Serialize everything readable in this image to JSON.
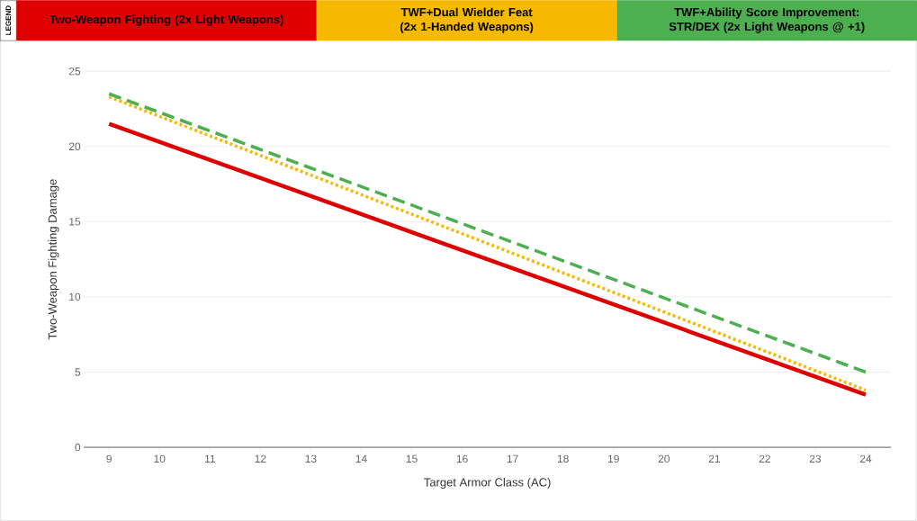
{
  "chart_data": {
    "type": "line",
    "xlabel": "Target Armor Class (AC)",
    "ylabel": "Two-Weapon Fighting Damage",
    "legend_title": "LEGEND",
    "x": [
      9,
      24
    ],
    "series": [
      {
        "name": "Two-Weapon Fighting (2x Light Weapons)",
        "color": "#e00000",
        "line_style": "solid",
        "values": [
          21.5,
          3.5
        ]
      },
      {
        "name": "TWF+Dual Wielder Feat (2x 1-Handed Weapons)",
        "color": "#f6b900",
        "line_style": "dotted",
        "values": [
          23.3,
          3.8
        ]
      },
      {
        "name": "TWF+Ability Score Improvement: STR/DEX (2x Light Weapons @ +1)",
        "color": "#4caf50",
        "line_style": "dashed",
        "values": [
          23.5,
          5.0
        ]
      }
    ],
    "xlim": [
      8.5,
      24.5
    ],
    "ylim": [
      0,
      25
    ],
    "xticks": [
      9,
      10,
      11,
      12,
      13,
      14,
      15,
      16,
      17,
      18,
      19,
      20,
      21,
      22,
      23,
      24
    ],
    "yticks": [
      0,
      5,
      10,
      15,
      20,
      25
    ],
    "grid": "y",
    "legend": "top",
    "marker": "none"
  }
}
